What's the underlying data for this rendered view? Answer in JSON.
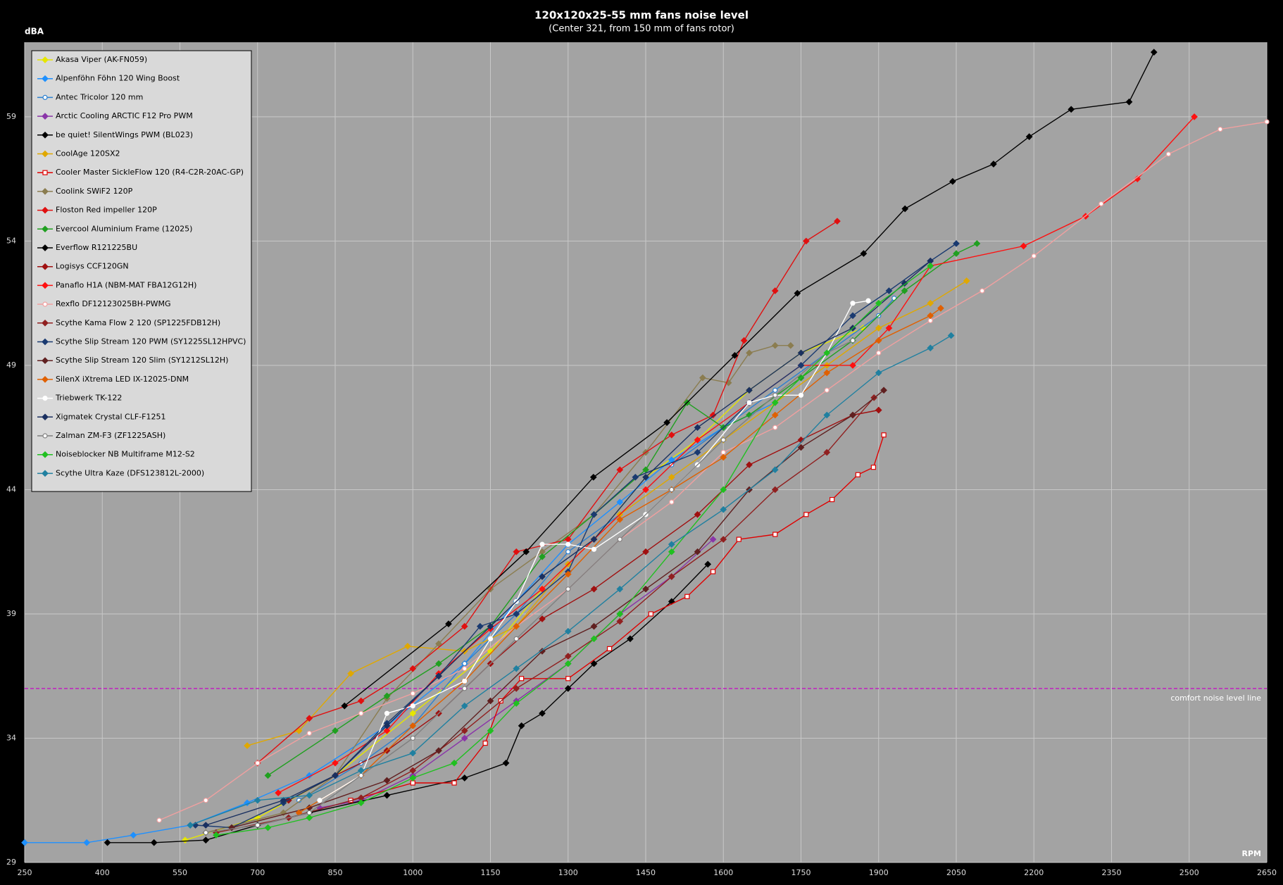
{
  "chart_data": {
    "type": "line",
    "title": "120x120x25-55 mm fans noise level",
    "subtitle": "(Center 321, from 150 mm of fans rotor)",
    "y_label": "dBA",
    "x_label": "RPM",
    "xlim": [
      250,
      2650
    ],
    "xticks": [
      250,
      400,
      550,
      700,
      850,
      1000,
      1150,
      1300,
      1450,
      1600,
      1750,
      1900,
      2050,
      2200,
      2350,
      2500,
      2650
    ],
    "ylim": [
      29,
      62
    ],
    "yticks": [
      29,
      34,
      39,
      44,
      49,
      54,
      59
    ],
    "grid": true,
    "legend": "top-left",
    "comfort_line": {
      "value": 36,
      "label": "comfort noise level line",
      "color": "#c020c0"
    },
    "series": [
      {
        "name": "Akasa Viper (AK-FN059)",
        "color": "#e6e600",
        "marker": "diamond",
        "hollow": false,
        "x": [
          560,
          700,
          850,
          1000,
          1150,
          1250,
          1350,
          1450,
          1550,
          1650,
          1750,
          1870
        ],
        "values": [
          29.9,
          30.8,
          32.5,
          35,
          37.5,
          40,
          42,
          44.5,
          46,
          48,
          49.5,
          50.5
        ]
      },
      {
        "name": "Alpenföhn Föhn 120 Wing Boost",
        "color": "#1e90ff",
        "marker": "diamond",
        "hollow": false,
        "x": [
          250,
          370,
          460,
          570,
          680,
          800,
          950,
          1100,
          1200,
          1300,
          1400,
          1500,
          1600,
          1700
        ],
        "values": [
          29.8,
          29.8,
          30.1,
          30.5,
          31.4,
          32.5,
          34.5,
          37,
          39.5,
          41.8,
          43.5,
          45.2,
          46.5,
          47.5
        ]
      },
      {
        "name": "Antec Tricolor 120 mm",
        "color": "#2c80d0",
        "marker": "circle",
        "hollow": true,
        "x": [
          780,
          900,
          1000,
          1100,
          1200,
          1300,
          1400,
          1500,
          1600,
          1700,
          1800,
          1900,
          1930
        ],
        "values": [
          31.5,
          33,
          34.5,
          37,
          39,
          41.5,
          43,
          45,
          46.5,
          48,
          49.5,
          51,
          51.7
        ]
      },
      {
        "name": "Arctic Cooling ARCTIC F12 Pro PWM",
        "color": "#8a35a8",
        "marker": "diamond",
        "hollow": false,
        "x": [
          820,
          900,
          1000,
          1100,
          1200,
          1300,
          1400,
          1500,
          1580
        ],
        "values": [
          31.2,
          31.5,
          32.5,
          34,
          35.5,
          37,
          39,
          40.5,
          42
        ]
      },
      {
        "name": "be quiet! SilentWings PWM (BL023)",
        "color": "#000000",
        "marker": "diamond",
        "hollow": false,
        "x": [
          410,
          500,
          600,
          700,
          800,
          950,
          1100,
          1180,
          1210,
          1250,
          1300,
          1350,
          1420,
          1500,
          1570
        ],
        "values": [
          29.8,
          29.8,
          29.9,
          30.5,
          31,
          31.7,
          32.4,
          33,
          34.5,
          35,
          36,
          37,
          38,
          39.5,
          41
        ]
      },
      {
        "name": "CoolAge 120SX2",
        "color": "#e0a800",
        "marker": "diamond",
        "hollow": false,
        "x": [
          680,
          780,
          880,
          990,
          1100,
          1200,
          1300,
          1400,
          1500,
          1600,
          1700,
          1800,
          1900,
          2000,
          2070
        ],
        "values": [
          33.7,
          34.3,
          36.6,
          37.7,
          37.5,
          38.5,
          41,
          43,
          44.5,
          46,
          47.5,
          49,
          50.5,
          51.5,
          52.4
        ]
      },
      {
        "name": "Cooler Master SickleFlow 120 (R4-C2R-20AC-GP)",
        "color": "#e00000",
        "marker": "square",
        "hollow": true,
        "x": [
          880,
          1000,
          1080,
          1140,
          1170,
          1210,
          1300,
          1380,
          1460,
          1530,
          1580,
          1630,
          1700,
          1760,
          1810,
          1860,
          1890,
          1910
        ],
        "values": [
          31.5,
          32.2,
          32.2,
          33.8,
          35.5,
          36.4,
          36.4,
          37.6,
          39,
          39.7,
          40.7,
          42,
          42.2,
          43,
          43.6,
          44.6,
          44.9,
          46.2
        ]
      },
      {
        "name": "Coolink SWiF2 120P",
        "color": "#8b7d50",
        "marker": "diamond",
        "hollow": false,
        "x": [
          600,
          750,
          850,
          950,
          1050,
          1150,
          1250,
          1350,
          1450,
          1560,
          1610,
          1650,
          1700,
          1730
        ],
        "values": [
          30.2,
          31,
          32.5,
          35.6,
          37.8,
          40,
          41.5,
          43,
          45.5,
          48.5,
          48.3,
          49.5,
          49.8,
          49.8
        ]
      },
      {
        "name": "Floston Red impeller 120P",
        "color": "#e01010",
        "marker": "diamond",
        "hollow": false,
        "x": [
          700,
          800,
          900,
          1000,
          1100,
          1200,
          1300,
          1400,
          1500,
          1580,
          1640,
          1700,
          1760,
          1820
        ],
        "values": [
          33,
          34.8,
          35.5,
          36.8,
          38.5,
          41.5,
          42,
          44.8,
          46.2,
          47,
          50,
          52,
          54,
          54.8
        ]
      },
      {
        "name": "Evercool Aluminium Frame (12025)",
        "color": "#20a020",
        "marker": "diamond",
        "hollow": false,
        "x": [
          720,
          850,
          950,
          1050,
          1150,
          1250,
          1350,
          1450,
          1530,
          1600,
          1650,
          1750,
          1850,
          1950,
          2050,
          2090
        ],
        "values": [
          32.5,
          34.3,
          35.7,
          37,
          38.5,
          41.3,
          43,
          44.8,
          47.5,
          46.5,
          47,
          48.5,
          50,
          52,
          53.5,
          53.9
        ]
      },
      {
        "name": "Everflow R121225BU",
        "color": "#000000",
        "marker": "diamond",
        "hollow": false,
        "x": [
          868,
          1069,
          1219,
          1349,
          1491,
          1622,
          1743,
          1871,
          1951,
          2043,
          2122,
          2191,
          2272,
          2384,
          2432
        ],
        "values": [
          35.3,
          38.6,
          41.5,
          44.5,
          46.7,
          49.4,
          51.9,
          53.5,
          55.3,
          56.4,
          57.1,
          58.2,
          59.3,
          59.6,
          61.6
        ]
      },
      {
        "name": "Logisys CCF120GN",
        "color": "#a01010",
        "marker": "diamond",
        "hollow": false,
        "x": [
          760,
          850,
          950,
          1050,
          1150,
          1250,
          1350,
          1450,
          1550,
          1650,
          1750,
          1850,
          1900
        ],
        "values": [
          31.5,
          32.5,
          33.5,
          35,
          37,
          38.8,
          40,
          41.5,
          43,
          45,
          46,
          47,
          47.2
        ]
      },
      {
        "name": "Panaflo H1A (NBM-MAT FBA12G12H)",
        "color": "#ff1010",
        "marker": "diamond",
        "hollow": false,
        "x": [
          740,
          850,
          950,
          1050,
          1150,
          1250,
          1350,
          1450,
          1550,
          1650,
          1750,
          1850,
          1920,
          2000,
          2180,
          2300,
          2400,
          2510
        ],
        "values": [
          31.8,
          33,
          34.3,
          36.6,
          38.4,
          40,
          42,
          44,
          46,
          47.5,
          49,
          49,
          50.5,
          53,
          53.8,
          55,
          56.5,
          59
        ]
      },
      {
        "name": "Rexflo DF12123025BH-PWMG",
        "color": "#f0a0a0",
        "marker": "circle",
        "hollow": true,
        "x": [
          510,
          600,
          700,
          800,
          900,
          1000,
          1100,
          1200,
          1300,
          1400,
          1500,
          1600,
          1700,
          1800,
          1900,
          2000,
          2100,
          2200,
          2330,
          2460,
          2560,
          2650
        ],
        "values": [
          30.7,
          31.5,
          33,
          34.2,
          35,
          35.8,
          36.8,
          38.5,
          40,
          42,
          43.5,
          45.5,
          46.5,
          48,
          49.5,
          50.8,
          52,
          53.4,
          55.5,
          57.5,
          58.5,
          58.8
        ]
      },
      {
        "name": "Scythe Kama Flow 2 120 (SP1225FDB12H)",
        "color": "#902020",
        "marker": "diamond",
        "hollow": false,
        "x": [
          620,
          760,
          900,
          1000,
          1100,
          1200,
          1300,
          1400,
          1500,
          1600,
          1700,
          1800,
          1891
        ],
        "values": [
          30.2,
          30.8,
          31.6,
          32.7,
          34.3,
          36,
          37.3,
          38.7,
          40.5,
          42,
          44,
          45.5,
          47.7
        ]
      },
      {
        "name": "Scythe Slip Stream 120 PWM (SY1225SL12HPVC)",
        "color": "#1a3a70",
        "marker": "diamond",
        "hollow": false,
        "x": [
          580,
          650,
          750,
          850,
          950,
          1050,
          1130,
          1200,
          1300,
          1350,
          1430,
          1550,
          1650,
          1750,
          1850,
          1920,
          2000,
          2050
        ],
        "values": [
          30.5,
          30.4,
          31.4,
          32.5,
          34.6,
          36.5,
          38.5,
          39,
          40.7,
          43,
          44.5,
          45.5,
          47.5,
          49,
          51,
          52,
          53.2,
          53.9
        ]
      },
      {
        "name": "Scythe Slip Stream 120 Slim (SY1212SL12H)",
        "color": "#602020",
        "marker": "diamond",
        "hollow": false,
        "x": [
          650,
          800,
          950,
          1050,
          1150,
          1250,
          1350,
          1450,
          1550,
          1650,
          1750,
          1850,
          1910
        ],
        "values": [
          30.4,
          31.2,
          32.3,
          33.5,
          35.5,
          37.5,
          38.5,
          40,
          41.5,
          44,
          45.7,
          47,
          48
        ]
      },
      {
        "name": "SilenX iXtrema LED IX-12025-DNM",
        "color": "#e06000",
        "marker": "diamond",
        "hollow": false,
        "x": [
          780,
          900,
          1000,
          1100,
          1200,
          1300,
          1400,
          1500,
          1600,
          1700,
          1800,
          1900,
          2000,
          2020
        ],
        "values": [
          31,
          32.5,
          34.5,
          36.3,
          38.5,
          40.6,
          42.8,
          44,
          45.3,
          47,
          48.7,
          50,
          51,
          51.3
        ]
      },
      {
        "name": "Triebwerk TK-122",
        "color": "#ffffff",
        "marker": "circle",
        "hollow": true,
        "x": [
          820,
          900,
          950,
          1000,
          1100,
          1150,
          1200,
          1250,
          1300,
          1350,
          1450,
          1550,
          1650,
          1700,
          1750,
          1800,
          1850,
          1880
        ],
        "values": [
          31.5,
          32.5,
          35,
          35.3,
          36.3,
          38,
          39.5,
          41.8,
          41.8,
          41.6,
          43,
          45,
          47.5,
          47.8,
          47.8,
          49.5,
          51.5,
          51.6
        ]
      },
      {
        "name": "Xigmatek Crystal CLF-F1251",
        "color": "#1a3060",
        "marker": "diamond",
        "hollow": false,
        "x": [
          600,
          750,
          850,
          950,
          1050,
          1150,
          1250,
          1350,
          1450,
          1550,
          1650,
          1750,
          1850,
          1950,
          2000
        ],
        "values": [
          30.5,
          31.5,
          32.5,
          34.5,
          36.5,
          38.5,
          40.5,
          42,
          44.5,
          46.5,
          48,
          49.5,
          50.5,
          52.3,
          53.2
        ]
      },
      {
        "name": "Zalman ZM-F3 (ZF1225ASH)",
        "color": "#808080",
        "marker": "circle",
        "hollow": true,
        "x": [
          600,
          700,
          800,
          900,
          1000,
          1100,
          1200,
          1300,
          1400,
          1500,
          1600,
          1700,
          1800,
          1850
        ],
        "values": [
          30.2,
          30.5,
          31,
          32.5,
          34,
          36,
          38,
          40,
          42,
          44,
          46,
          47.8,
          49.5,
          50
        ]
      },
      {
        "name": "Noiseblocker NB Multiframe M12-S2",
        "color": "#20c020",
        "marker": "diamond",
        "hollow": false,
        "x": [
          620,
          720,
          800,
          900,
          1000,
          1080,
          1150,
          1200,
          1300,
          1350,
          1400,
          1500,
          1600,
          1700,
          1800,
          1900,
          2000
        ],
        "values": [
          30.1,
          30.4,
          30.8,
          31.4,
          32.4,
          33,
          34.3,
          35.4,
          37,
          38,
          39,
          41.5,
          44,
          47.5,
          49.5,
          51.5,
          53
        ]
      },
      {
        "name": "Scythe Ultra Kaze (DFS123812L-2000)",
        "color": "#2080a0",
        "marker": "diamond",
        "hollow": false,
        "x": [
          570,
          700,
          800,
          900,
          1000,
          1100,
          1200,
          1300,
          1400,
          1500,
          1600,
          1700,
          1800,
          1900,
          2000,
          2040
        ],
        "values": [
          30.5,
          31.5,
          31.7,
          32.7,
          33.4,
          35.3,
          36.8,
          38.3,
          40,
          41.8,
          43.2,
          44.8,
          47,
          48.7,
          49.7,
          50.2
        ]
      }
    ]
  }
}
